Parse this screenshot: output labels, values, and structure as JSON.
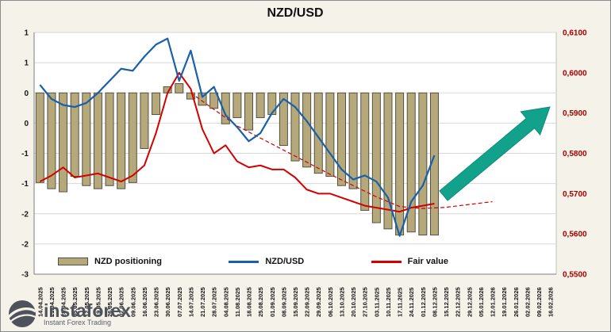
{
  "title": "NZD/USD",
  "legend": {
    "positioning": "NZD positioning",
    "nzdusd": "NZD/USD",
    "fair": "Fair value"
  },
  "watermark": {
    "name": "instaforex",
    "tagline": "Instant Forex Trading"
  },
  "colors": {
    "background": "#f5f2e9",
    "plot_bg": "#ffffff",
    "grid": "#d8d8d8",
    "bar": "#b5a97c",
    "bar_border": "#55503e",
    "nzdusd_line": "#1860a8",
    "fair_line": "#d40000",
    "forecast_line": "#d40000",
    "arrow": "#12a28b",
    "right_axis_text": "#a50000"
  },
  "chart_data": {
    "type": "bar",
    "subtype": "combo-bar-and-lines",
    "title": "NZD/USD",
    "grid": true,
    "legend_position": "bottom",
    "categories": [
      "14.04.2025",
      "21.04.2025",
      "28.04.2025",
      "05.05.2025",
      "12.05.2025",
      "19.05.2025",
      "26.05.2025",
      "02.06.2025",
      "09.06.2025",
      "16.06.2025",
      "23.06.2025",
      "30.06.2025",
      "07.07.2025",
      "14.07.2025",
      "21.07.2025",
      "28.07.2025",
      "04.08.2025",
      "11.08.2025",
      "18.08.2025",
      "25.08.2025",
      "01.09.2025",
      "08.09.2025",
      "15.09.2025",
      "22.09.2025",
      "29.09.2025",
      "06.10.2025",
      "13.10.2025",
      "20.10.2025",
      "27.10.2025",
      "03.11.2025",
      "10.11.2025",
      "17.11.2025",
      "24.11.2025",
      "01.12.2025",
      "08.12.2025",
      "15.12.2025",
      "22.12.2025",
      "29.12.2025",
      "05.01.2026",
      "12.01.2026",
      "19.01.2026",
      "26.01.2026",
      "02.02.2026",
      "09.02.2026",
      "16.02.2026"
    ],
    "left_axis": {
      "labels": [
        "1",
        "1",
        "0",
        "0",
        "-1",
        "-1",
        "-2",
        "-2",
        "-3"
      ],
      "zero_gridline_index": 2
    },
    "right_axis": {
      "labels": [
        "0,6100",
        "0,6000",
        "0,5900",
        "0,5800",
        "0,5700",
        "0,5600",
        "0,5500"
      ],
      "min": 0.55,
      "max": 0.61
    },
    "series": [
      {
        "name": "NZD positioning",
        "type": "bar",
        "axis": "left",
        "values": [
          -1.45,
          -1.55,
          -1.6,
          -1.35,
          -1.5,
          -1.55,
          -1.5,
          -1.55,
          -1.45,
          -0.9,
          -0.35,
          0.1,
          0.15,
          -0.1,
          -0.2,
          -0.25,
          -0.5,
          -0.4,
          -0.6,
          -0.4,
          -0.35,
          -0.85,
          -1.1,
          -1.2,
          -1.3,
          -1.35,
          -1.5,
          -1.55,
          -1.9,
          -2.1,
          -2.2,
          -2.3,
          -2.25,
          -2.3,
          -2.3
        ]
      },
      {
        "name": "NZD/USD",
        "type": "line",
        "axis": "right",
        "values": [
          0.597,
          0.5935,
          0.592,
          0.5915,
          0.5925,
          0.595,
          0.598,
          0.601,
          0.6005,
          0.604,
          0.607,
          0.6085,
          0.598,
          0.6055,
          0.594,
          0.5965,
          0.5895,
          0.5865,
          0.583,
          0.585,
          0.59,
          0.5935,
          0.5915,
          0.588,
          0.584,
          0.58,
          0.576,
          0.5735,
          0.5745,
          0.573,
          0.569,
          0.5595,
          0.568,
          0.572,
          0.5795
        ]
      },
      {
        "name": "Fair value",
        "type": "line",
        "axis": "right",
        "values": [
          0.573,
          0.5745,
          0.5765,
          0.574,
          0.5745,
          0.575,
          0.574,
          0.573,
          0.5745,
          0.577,
          0.585,
          0.595,
          0.6,
          0.596,
          0.586,
          0.58,
          0.582,
          0.578,
          0.5765,
          0.577,
          0.576,
          0.576,
          0.574,
          0.571,
          0.57,
          0.57,
          0.569,
          0.568,
          0.567,
          0.5665,
          0.566,
          0.5655,
          0.5665,
          0.567,
          0.5675
        ]
      },
      {
        "name": "Fair value trend (dashed forecast)",
        "type": "line-dashed",
        "axis": "right",
        "points": [
          {
            "i": 13,
            "v": 0.595
          },
          {
            "i": 17,
            "v": 0.5868
          },
          {
            "i": 21,
            "v": 0.5808
          },
          {
            "i": 25,
            "v": 0.5748
          },
          {
            "i": 29,
            "v": 0.5692
          },
          {
            "i": 31,
            "v": 0.5668
          },
          {
            "i": 33,
            "v": 0.5663
          },
          {
            "i": 35,
            "v": 0.5666
          },
          {
            "i": 39,
            "v": 0.568
          }
        ]
      }
    ],
    "annotation_arrow": {
      "x1": 558,
      "y1": 246,
      "x2": 692,
      "y2": 134
    }
  }
}
